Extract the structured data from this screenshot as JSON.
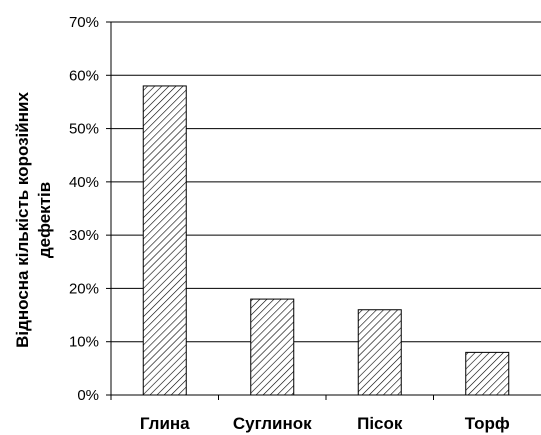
{
  "chart_data": {
    "type": "bar",
    "categories": [
      "Глина",
      "Суглинок",
      "Пісок",
      "Торф"
    ],
    "values": [
      58,
      18,
      16,
      8
    ],
    "ylabel_lines": [
      "Відносна кількість корозійних",
      "дефектів"
    ],
    "ylim": [
      0,
      70
    ],
    "yticks": [
      0,
      10,
      20,
      30,
      40,
      50,
      60,
      70
    ],
    "ytick_labels": [
      "0%",
      "10%",
      "20%",
      "30%",
      "40%",
      "50%",
      "60%",
      "70%"
    ],
    "grid": true,
    "fill": "diagonal-hatch",
    "colors": {
      "bar_stroke": "#000000",
      "hatch": "#000000",
      "grid": "#000000"
    }
  }
}
